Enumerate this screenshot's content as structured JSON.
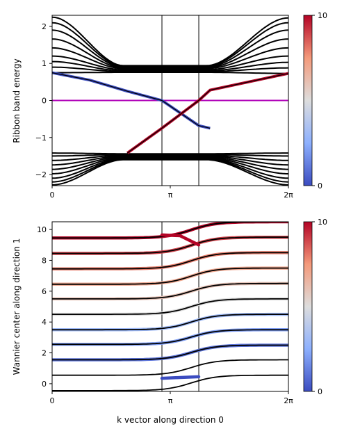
{
  "chart_data": [
    {
      "type": "line",
      "ylabel": "Ribbon band energy",
      "xlabel": "",
      "xlim": [
        0,
        6.2832
      ],
      "ylim": [
        -2.3,
        2.3
      ],
      "xticks": [
        {
          "value": 0,
          "label": "0"
        },
        {
          "value": 3.1416,
          "label": "π"
        },
        {
          "value": 6.2832,
          "label": "2π"
        }
      ],
      "yticks": [
        {
          "value": -2,
          "label": "−2"
        },
        {
          "value": -1,
          "label": "−1"
        },
        {
          "value": 0,
          "label": "0"
        },
        {
          "value": 1,
          "label": "1"
        },
        {
          "value": 2,
          "label": "2"
        }
      ],
      "vlines": [
        2.92,
        3.9
      ],
      "fermi_level": 0,
      "bands_upper_left": [
        0.75,
        0.9,
        1.05,
        1.2,
        1.42,
        1.66,
        1.9,
        2.1,
        2.25
      ],
      "bands_upper_right": [
        0.73,
        0.88,
        1.03,
        1.2,
        1.42,
        1.66,
        1.9,
        2.1,
        2.23
      ],
      "bands_upper_min": [
        0.76,
        0.78,
        0.8,
        0.83,
        0.86,
        0.88,
        0.9,
        0.92,
        0.94
      ],
      "bands_lower_left": [
        -1.42,
        -1.5,
        -1.62,
        -1.74,
        -1.86,
        -1.98,
        -2.1,
        -2.2,
        -2.28
      ],
      "bands_lower_right": [
        -1.42,
        -1.5,
        -1.62,
        -1.74,
        -1.86,
        -1.98,
        -2.1,
        -2.2,
        -2.28
      ],
      "bands_lower_max": [
        -1.44,
        -1.46,
        -1.48,
        -1.5,
        -1.52,
        -1.54,
        -1.56,
        -1.58,
        -1.6
      ],
      "edge_states": [
        {
          "x": [
            0,
            1.0,
            2.0,
            2.92,
            3.9,
            4.2
          ],
          "y": [
            0.75,
            0.55,
            0.25,
            0.0,
            -0.68,
            -0.75
          ],
          "weight": 0
        },
        {
          "x": [
            2.0,
            2.92,
            3.9,
            4.2,
            6.2832
          ],
          "y": [
            -1.42,
            -0.75,
            0.0,
            0.28,
            0.73
          ],
          "weight": 10
        }
      ],
      "colorbar": {
        "min": 0,
        "max": 10,
        "ticks": [
          "0",
          "10"
        ],
        "colormap": "coolwarm"
      },
      "colors": {
        "bands": "#000000",
        "fermi": "#b000b8",
        "low": "#3b4cc0",
        "high": "#b40426"
      }
    },
    {
      "type": "line",
      "ylabel": "Wannier center along direction 1",
      "xlabel": "k vector along direction 0",
      "xlim": [
        0,
        6.2832
      ],
      "ylim": [
        -0.5,
        10.5
      ],
      "xticks": [
        {
          "value": 0,
          "label": "0"
        },
        {
          "value": 3.1416,
          "label": "π"
        },
        {
          "value": 6.2832,
          "label": "2π"
        }
      ],
      "yticks": [
        {
          "value": 0,
          "label": "0"
        },
        {
          "value": 2,
          "label": "2"
        },
        {
          "value": 4,
          "label": "4"
        },
        {
          "value": 6,
          "label": "6"
        },
        {
          "value": 8,
          "label": "8"
        },
        {
          "value": 10,
          "label": "10"
        }
      ],
      "vlines": [
        2.92,
        3.9
      ],
      "wannier_left": [
        -0.45,
        0.55,
        1.55,
        2.55,
        3.5,
        4.5,
        5.5,
        6.45,
        7.45,
        8.45,
        9.45
      ],
      "wannier_right": [
        0.55,
        1.55,
        2.5,
        3.5,
        4.5,
        5.5,
        6.5,
        7.5,
        8.5,
        9.5,
        10.5
      ],
      "wannier_weights": [
        0,
        0,
        1,
        2,
        3,
        5,
        6,
        7,
        8,
        9,
        10
      ],
      "edge_segments": [
        {
          "x": [
            2.92,
            3.4,
            3.9
          ],
          "y": [
            9.65,
            9.6,
            9.0
          ],
          "weight": 10
        },
        {
          "x": [
            2.92,
            3.4,
            3.9
          ],
          "y": [
            0.35,
            0.4,
            0.45
          ],
          "weight": 0
        }
      ],
      "colorbar": {
        "min": 0,
        "max": 10,
        "ticks": [
          "0",
          "10"
        ],
        "colormap": "coolwarm"
      },
      "colors": {
        "lines": "#000000",
        "low": "#3b4cc0",
        "high": "#b40426"
      }
    }
  ]
}
